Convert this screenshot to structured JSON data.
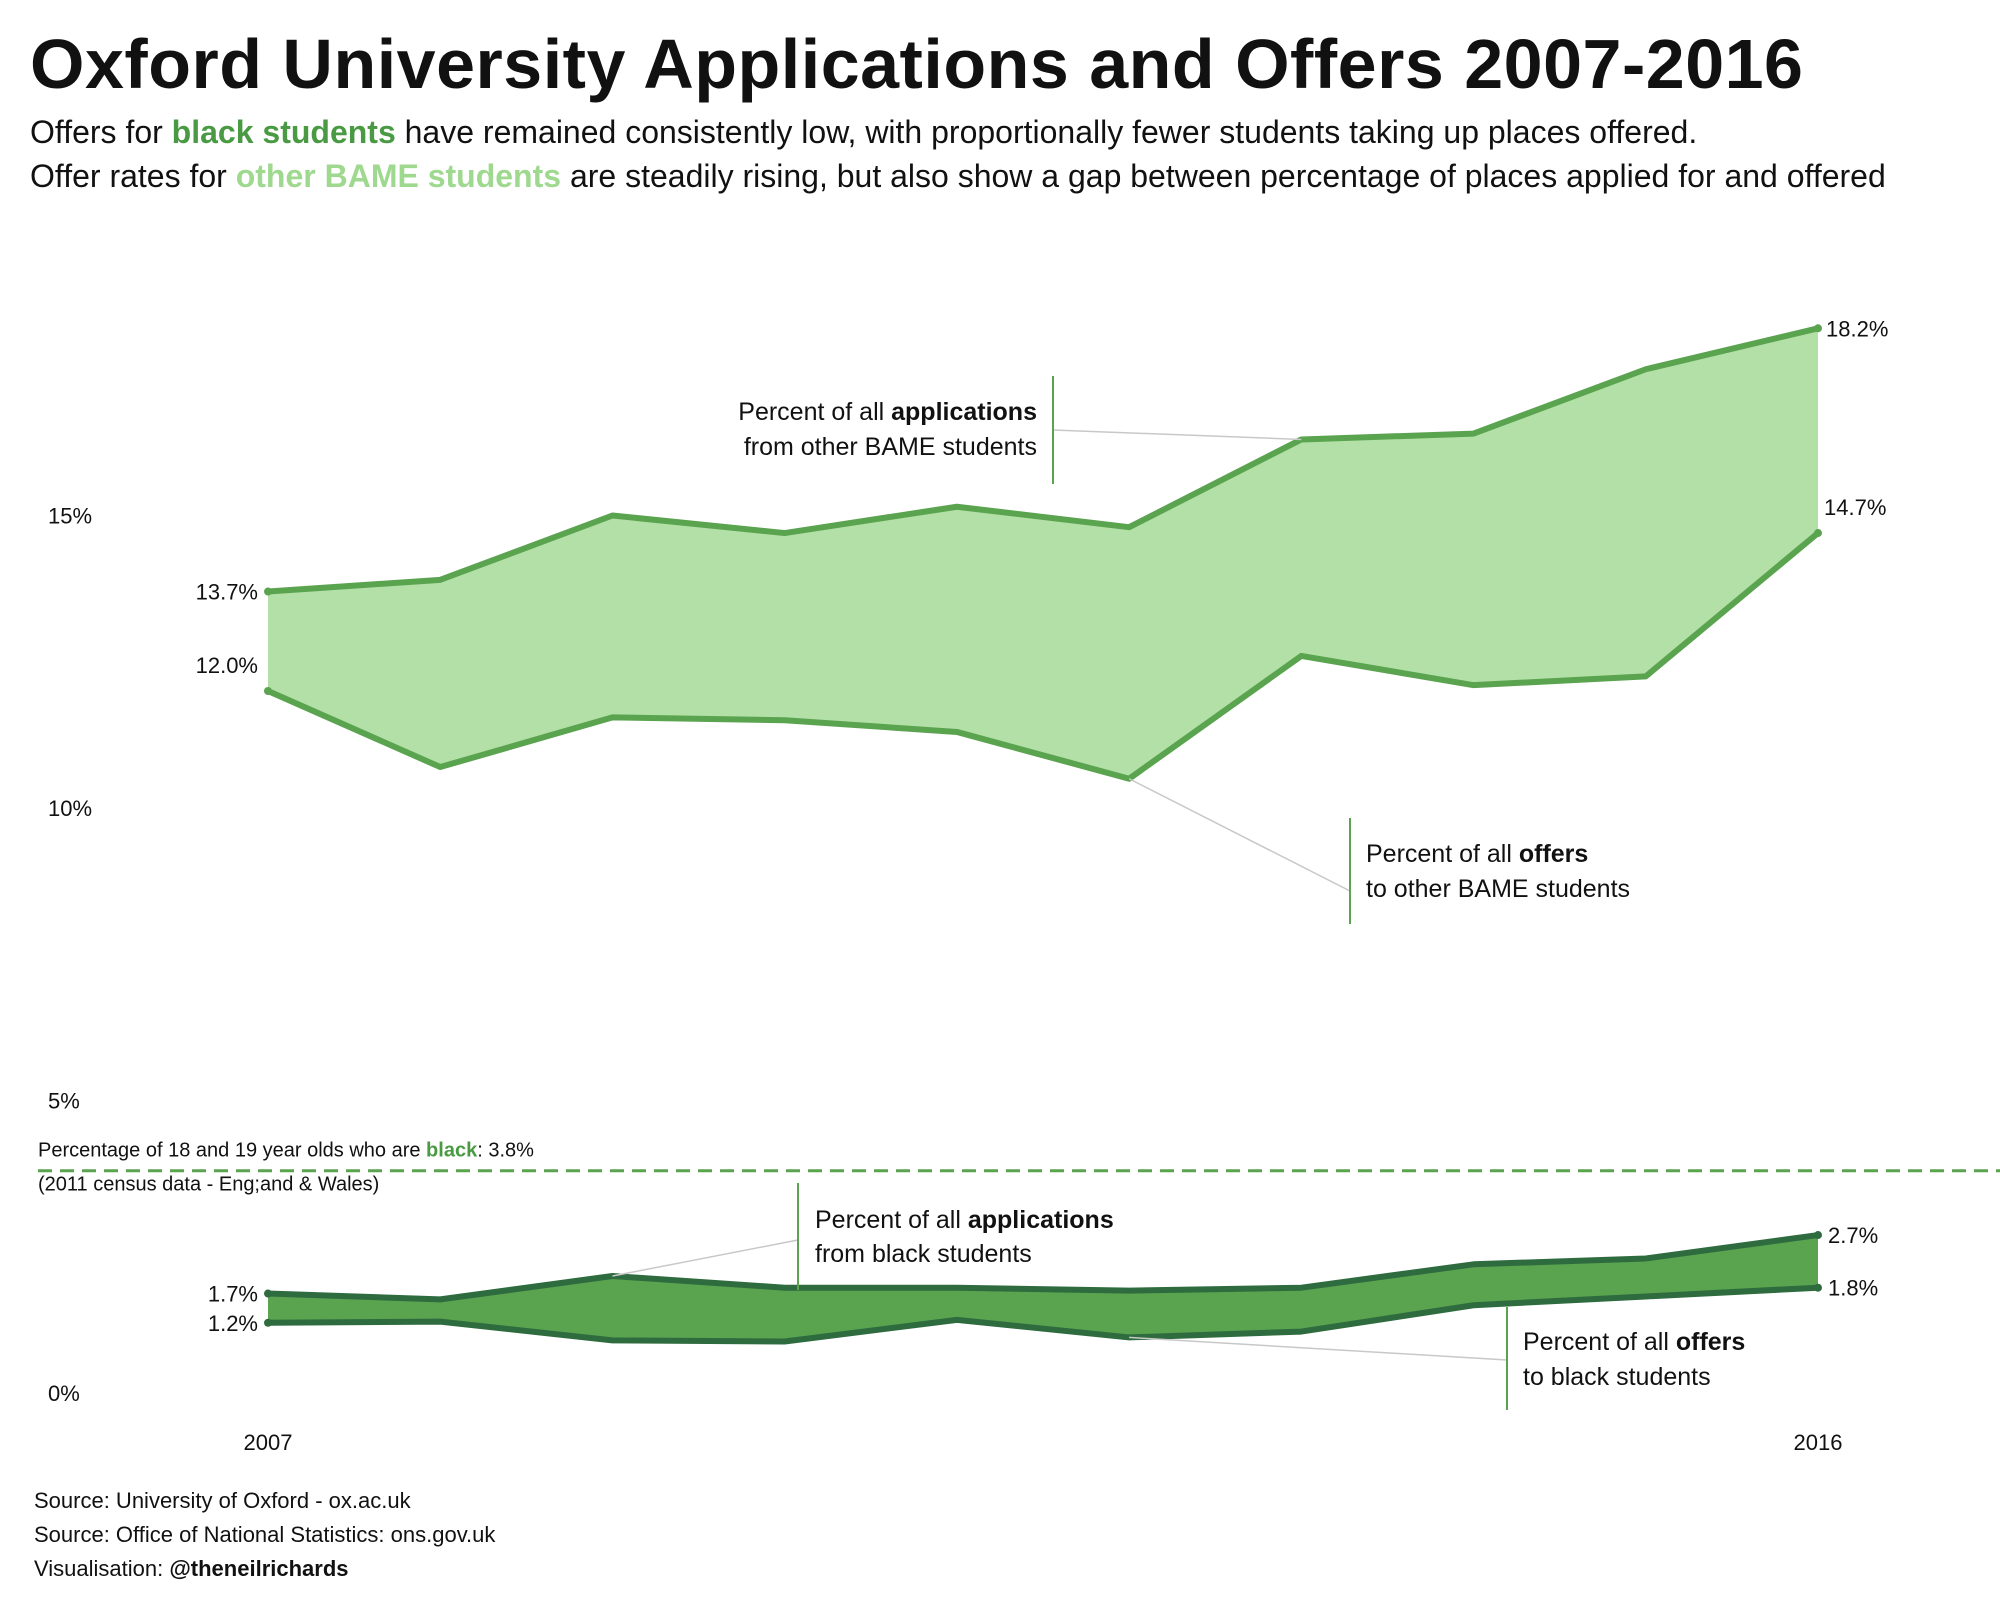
{
  "header": {
    "title": "Oxford University Applications and Offers 2007-2016",
    "subtitle1": {
      "pre": "Offers for ",
      "highlight": "black students",
      "post": " have remained consistently low, with proportionally fewer students taking up places offered."
    },
    "subtitle2": {
      "pre": "Offer rates for ",
      "highlight": "other BAME students",
      "post": " are steadily rising, but also show a gap between percentage of places applied for and offered"
    }
  },
  "colors": {
    "bame_fill": "#b2e0a6",
    "bame_line": "#5aa34f",
    "black_fill": "#5aa34f",
    "black_line": "#2e6b3e",
    "highlight_black": "#4a9a44",
    "highlight_bame": "#9fd98f",
    "leader": "#c8c8c8"
  },
  "chart_data": {
    "type": "area",
    "x": [
      2007,
      2008,
      2009,
      2010,
      2011,
      2012,
      2013,
      2014,
      2015,
      2016
    ],
    "xticks": [
      "2007",
      "2016"
    ],
    "yticks": [
      {
        "value": 0,
        "label": "0%"
      },
      {
        "value": 5,
        "label": "5%"
      },
      {
        "value": 10,
        "label": "10%"
      },
      {
        "value": 15,
        "label": "15%"
      }
    ],
    "ylim": [
      0,
      18.2
    ],
    "grid": false,
    "series": [
      {
        "key": "bame_app",
        "values": [
          13.7,
          13.9,
          15.0,
          14.7,
          15.15,
          14.8,
          16.3,
          16.4,
          17.5,
          18.2
        ],
        "start_label": "13.7%",
        "end_label": "18.2%"
      },
      {
        "key": "bame_off",
        "values": [
          12.0,
          10.7,
          11.55,
          11.5,
          11.3,
          10.5,
          12.6,
          12.1,
          12.25,
          14.7
        ],
        "start_label": "12.0%",
        "end_label": "14.7%"
      },
      {
        "key": "black_app",
        "values": [
          1.7,
          1.6,
          2.0,
          1.8,
          1.8,
          1.75,
          1.8,
          2.2,
          2.3,
          2.7
        ],
        "start_label": "1.7%",
        "end_label": "2.7%"
      },
      {
        "key": "black_off",
        "values": [
          1.2,
          1.22,
          0.9,
          0.88,
          1.25,
          0.95,
          1.05,
          1.5,
          1.65,
          1.8
        ],
        "start_label": "1.2%",
        "end_label": "1.8%"
      }
    ],
    "reference_line": {
      "value": 3.8,
      "label_pre": "Percentage of 18 and 19 year olds who are ",
      "label_highlight": "black",
      "label_post": ": 3.8%",
      "label_note": "(2011 census data - Eng;and & Wales)"
    },
    "annotations": [
      {
        "key": "bame_app",
        "line1_pre": "Percent of all ",
        "line1_bold": "applications",
        "line2": "from other BAME students"
      },
      {
        "key": "bame_off",
        "line1_pre": "Percent of all ",
        "line1_bold": "offers",
        "line2": "to other BAME students"
      },
      {
        "key": "black_app",
        "line1_pre": "Percent of all ",
        "line1_bold": "applications",
        "line2": "from black students"
      },
      {
        "key": "black_off",
        "line1_pre": "Percent of all ",
        "line1_bold": "offers",
        "line2": "to black students"
      }
    ]
  },
  "footer": {
    "source1": "Source:  University of Oxford - ox.ac.uk",
    "source2": "Source: Office of National Statistics: ons.gov.uk",
    "vis_pre": "Visualisation: ",
    "vis_handle": "@theneilrichards"
  }
}
